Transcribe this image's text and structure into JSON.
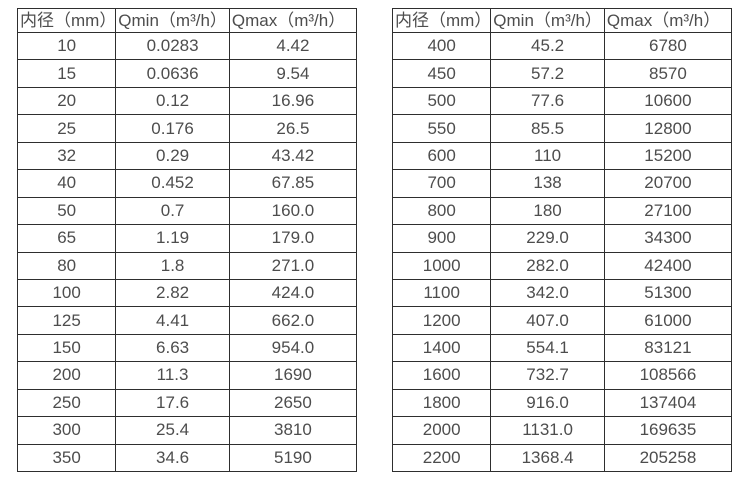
{
  "page": {
    "background": "#ffffff",
    "text_color": "#4d4d4d",
    "border_color": "#2e2e2e"
  },
  "chart_data": [
    {
      "type": "table",
      "title": "",
      "columns": [
        "内径（mm）",
        "Qmin（m³/h）",
        "Qmax（m³/h）"
      ],
      "rows": [
        [
          "10",
          "0.0283",
          "4.42"
        ],
        [
          "15",
          "0.0636",
          "9.54"
        ],
        [
          "20",
          "0.12",
          "16.96"
        ],
        [
          "25",
          "0.176",
          "26.5"
        ],
        [
          "32",
          "0.29",
          "43.42"
        ],
        [
          "40",
          "0.452",
          "67.85"
        ],
        [
          "50",
          "0.7",
          "160.0"
        ],
        [
          "65",
          "1.19",
          "179.0"
        ],
        [
          "80",
          "1.8",
          "271.0"
        ],
        [
          "100",
          "2.82",
          "424.0"
        ],
        [
          "125",
          "4.41",
          "662.0"
        ],
        [
          "150",
          "6.63",
          "954.0"
        ],
        [
          "200",
          "11.3",
          "1690"
        ],
        [
          "250",
          "17.6",
          "2650"
        ],
        [
          "300",
          "25.4",
          "3810"
        ],
        [
          "350",
          "34.6",
          "5190"
        ]
      ]
    },
    {
      "type": "table",
      "title": "",
      "columns": [
        "内径（mm）",
        "Qmin（m³/h）",
        "Qmax（m³/h）"
      ],
      "rows": [
        [
          "400",
          "45.2",
          "6780"
        ],
        [
          "450",
          "57.2",
          "8570"
        ],
        [
          "500",
          "77.6",
          "10600"
        ],
        [
          "550",
          "85.5",
          "12800"
        ],
        [
          "600",
          "110",
          "15200"
        ],
        [
          "700",
          "138",
          "20700"
        ],
        [
          "800",
          "180",
          "27100"
        ],
        [
          "900",
          "229.0",
          "34300"
        ],
        [
          "1000",
          "282.0",
          "42400"
        ],
        [
          "1100",
          "342.0",
          "51300"
        ],
        [
          "1200",
          "407.0",
          "61000"
        ],
        [
          "1400",
          "554.1",
          "83121"
        ],
        [
          "1600",
          "732.7",
          "108566"
        ],
        [
          "1800",
          "916.0",
          "137404"
        ],
        [
          "2000",
          "1131.0",
          "169635"
        ],
        [
          "2200",
          "1368.4",
          "205258"
        ]
      ]
    }
  ]
}
